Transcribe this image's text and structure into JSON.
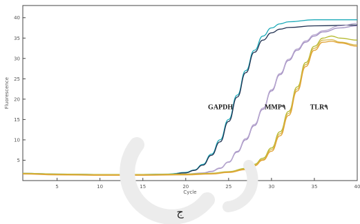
{
  "caption": "ج",
  "chart_data": {
    "type": "line",
    "xlabel": "Cycle",
    "ylabel": "Fluorescence",
    "xlim": [
      1,
      40
    ],
    "ylim": [
      0,
      43
    ],
    "grid": false,
    "xticks": [
      5,
      10,
      15,
      20,
      25,
      30,
      35,
      40
    ],
    "yticks": [
      5,
      10,
      15,
      20,
      25,
      30,
      35,
      40
    ],
    "series": [
      {
        "name": "GAPDH",
        "color": "#1ba9b8",
        "x": [
          1,
          5,
          10,
          15,
          18,
          20,
          21,
          22,
          23,
          24,
          25,
          26,
          27,
          28,
          29,
          30,
          31,
          32,
          35,
          40
        ],
        "y": [
          1.8,
          1.6,
          1.5,
          1.5,
          1.6,
          2,
          2.6,
          4,
          6.5,
          10,
          15,
          21,
          27,
          32,
          35.5,
          37.5,
          38.5,
          39,
          39.5,
          39.5
        ]
      },
      {
        "name": "GAPDH",
        "color": "#203050",
        "x": [
          1,
          5,
          10,
          15,
          18,
          20,
          21,
          22,
          23,
          24,
          25,
          26,
          27,
          28,
          29,
          30,
          31,
          32,
          35,
          40
        ],
        "y": [
          1.7,
          1.5,
          1.4,
          1.4,
          1.5,
          1.9,
          2.5,
          3.8,
          6.2,
          9.5,
          14.5,
          20.5,
          26.5,
          31.5,
          34.5,
          36.3,
          37.2,
          37.6,
          38,
          38.2
        ]
      },
      {
        "name": "MMP9",
        "color": "#a08cc0",
        "x": [
          1,
          5,
          10,
          15,
          20,
          22,
          23,
          24,
          25,
          26,
          27,
          28,
          29,
          30,
          31,
          32,
          33,
          34,
          35,
          36,
          38,
          40
        ],
        "y": [
          1.7,
          1.5,
          1.4,
          1.4,
          1.5,
          1.8,
          2.2,
          3,
          4.5,
          7,
          10,
          13.5,
          17.5,
          22,
          26,
          29.5,
          32,
          34,
          35.5,
          36.5,
          37.5,
          38
        ]
      },
      {
        "name": "MMP9",
        "color": "#b8a8d0",
        "x": [
          1,
          5,
          10,
          15,
          20,
          22,
          23,
          24,
          25,
          26,
          27,
          28,
          29,
          30,
          31,
          32,
          33,
          34,
          35,
          36,
          38,
          40
        ],
        "y": [
          1.8,
          1.6,
          1.5,
          1.5,
          1.6,
          1.9,
          2.3,
          3.1,
          4.6,
          7.2,
          10.3,
          13.8,
          17.8,
          22.3,
          26.3,
          29.8,
          32.3,
          34.3,
          35.8,
          36.8,
          38,
          38.6
        ]
      },
      {
        "name": "TLR4",
        "color": "#b4b82c",
        "x": [
          1,
          5,
          10,
          15,
          20,
          23,
          25,
          27,
          28,
          29,
          30,
          31,
          32,
          33,
          34,
          35,
          36,
          37,
          38,
          40
        ],
        "y": [
          1.8,
          1.6,
          1.5,
          1.5,
          1.6,
          1.8,
          2.2,
          3,
          4,
          5.5,
          8,
          12,
          17,
          23,
          29,
          33,
          35,
          35.5,
          35,
          34.5
        ]
      },
      {
        "name": "TLR4",
        "color": "#d8b84a",
        "x": [
          1,
          5,
          10,
          15,
          20,
          23,
          25,
          27,
          28,
          29,
          30,
          31,
          32,
          33,
          34,
          35,
          36,
          37,
          38,
          40
        ],
        "y": [
          1.7,
          1.5,
          1.4,
          1.4,
          1.5,
          1.7,
          2.1,
          2.8,
          3.8,
          5.2,
          7.6,
          11.5,
          16.5,
          22.5,
          28.5,
          32.5,
          34.5,
          34.6,
          34,
          33.3
        ]
      },
      {
        "name": "TLR4",
        "color": "#e0a030",
        "x": [
          1,
          5,
          10,
          15,
          20,
          23,
          25,
          27,
          28,
          29,
          30,
          31,
          32,
          33,
          34,
          35,
          36,
          37,
          38,
          40
        ],
        "y": [
          1.6,
          1.4,
          1.3,
          1.3,
          1.4,
          1.6,
          2,
          2.7,
          3.6,
          5,
          7.2,
          11,
          16,
          22,
          28,
          32,
          34,
          34.2,
          33.8,
          33
        ]
      }
    ],
    "annotations": [
      {
        "text": "GAPDH",
        "x": 22.6,
        "y": 17.5
      },
      {
        "text": "MMP٩",
        "x": 29.2,
        "y": 17.5
      },
      {
        "text": "TLR٩",
        "x": 34.5,
        "y": 17.5
      }
    ]
  }
}
